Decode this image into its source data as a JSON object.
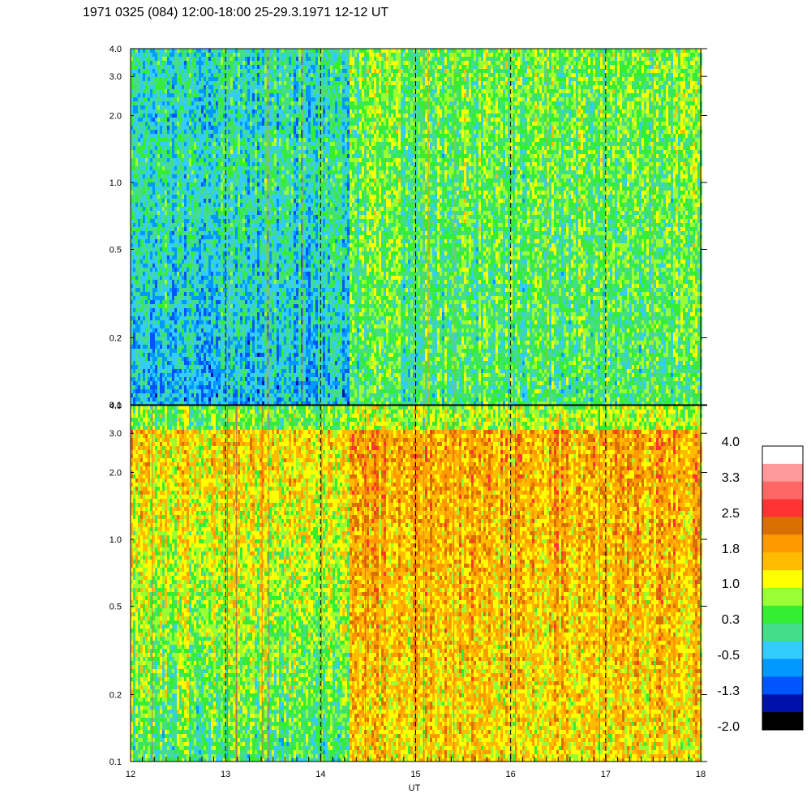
{
  "title": "1971 0325 (084) 12:00-18:00 25-29.3.1971  12-12 UT",
  "chart_data": [
    {
      "type": "heatmap",
      "panel": "upper",
      "x_range": [
        12,
        18
      ],
      "y_range": [
        0.1,
        4.0
      ],
      "y_scale": "log",
      "y_ticks": [
        "0.1",
        "0.2",
        "0.5",
        "1.0",
        "2.0",
        "3.0",
        "4.0"
      ],
      "x_ticks": [
        "12",
        "13",
        "14",
        "15",
        "16",
        "17",
        "18"
      ],
      "vertical_dashed_lines_at": [
        13,
        14,
        15,
        16,
        17
      ],
      "regime_change_at": 14.3,
      "dominant_level_before": {
        "low_freq": -0.5,
        "high_freq": 0.3
      },
      "dominant_level_after": {
        "low_freq": 0.3,
        "high_freq": 0.6
      }
    },
    {
      "type": "heatmap",
      "panel": "lower",
      "x_range": [
        12,
        18
      ],
      "y_range": [
        0.1,
        4.0
      ],
      "y_scale": "log",
      "y_ticks": [
        "0.1",
        "0.2",
        "0.5",
        "1.0",
        "2.0",
        "3.0",
        "4.0"
      ],
      "x_ticks": [
        "12",
        "13",
        "14",
        "15",
        "16",
        "17",
        "18"
      ],
      "xlabel": "UT",
      "vertical_dashed_lines_at": [
        13,
        14,
        15,
        16,
        17
      ],
      "regime_change_at": 14.3,
      "dominant_level_before": {
        "low_freq": 0.3,
        "high_freq": 1.6
      },
      "dominant_level_after": {
        "low_freq": 1.4,
        "high_freq": 1.9
      }
    }
  ],
  "colorbar": {
    "labels": [
      "4.0",
      "3.3",
      "2.5",
      "1.8",
      "1.0",
      "0.3",
      "-0.5",
      "-1.3",
      "-2.0"
    ],
    "colors": [
      "#ffffff",
      "#ff9999",
      "#ff6666",
      "#ff3333",
      "#d87000",
      "#ff9900",
      "#ffbb00",
      "#ffff00",
      "#99ff33",
      "#33ee33",
      "#44dd88",
      "#33ccff",
      "#0099ff",
      "#0055ff",
      "#0011aa",
      "#000000"
    ]
  }
}
